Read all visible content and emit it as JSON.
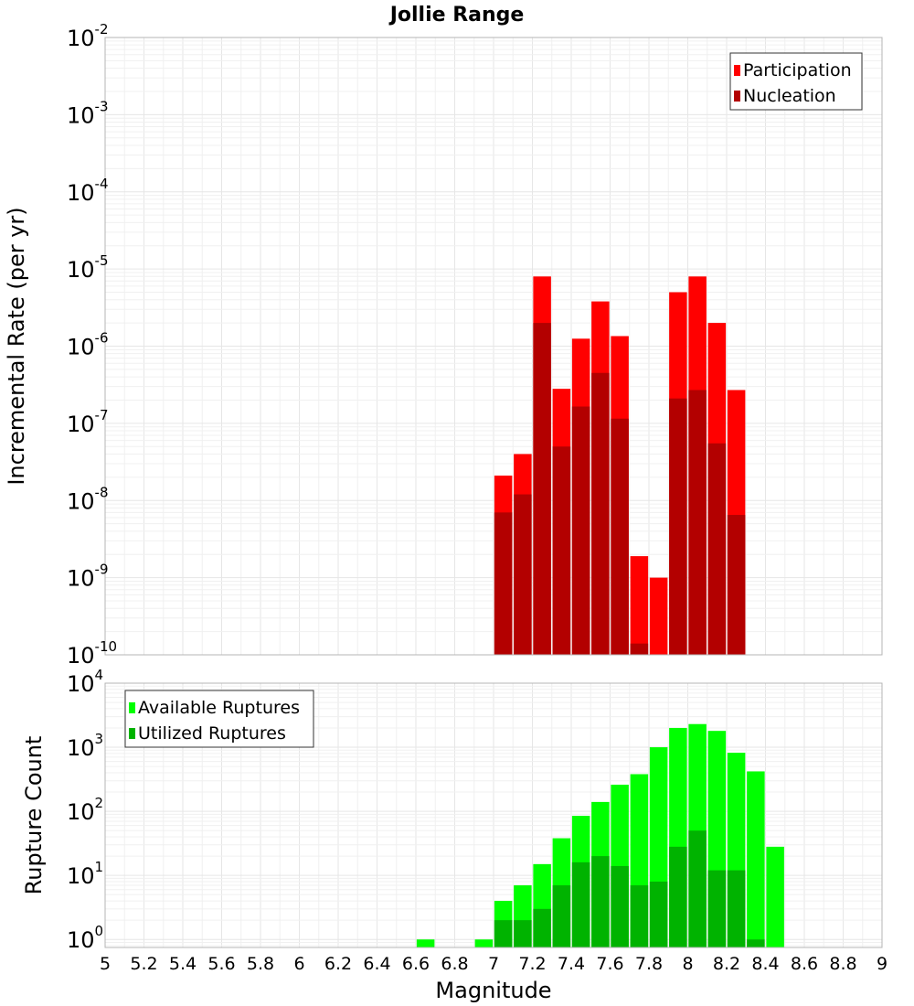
{
  "chart_data": [
    {
      "type": "bar",
      "title": "Jollie Range",
      "xlabel": "",
      "ylabel": "Incremental Rate (per yr)",
      "yscale": "log",
      "ylim": [
        1e-10,
        0.01
      ],
      "xlim": [
        5,
        9
      ],
      "grid": true,
      "legend_position": "top-right",
      "yticks": [
        {
          "base": "10",
          "exp": "-10",
          "value": 1e-10
        },
        {
          "base": "10",
          "exp": "-9",
          "value": 1e-09
        },
        {
          "base": "10",
          "exp": "-8",
          "value": 1e-08
        },
        {
          "base": "10",
          "exp": "-7",
          "value": 1e-07
        },
        {
          "base": "10",
          "exp": "-6",
          "value": 1e-06
        },
        {
          "base": "10",
          "exp": "-5",
          "value": 1e-05
        },
        {
          "base": "10",
          "exp": "-4",
          "value": 0.0001
        },
        {
          "base": "10",
          "exp": "-3",
          "value": 0.001
        },
        {
          "base": "10",
          "exp": "-2",
          "value": 0.01
        }
      ],
      "x": [
        7.05,
        7.15,
        7.25,
        7.35,
        7.45,
        7.55,
        7.65,
        7.75,
        7.85,
        7.95,
        8.05,
        8.15,
        8.25
      ],
      "series": [
        {
          "name": "Participation",
          "color": "#ff0000",
          "values": [
            2.1e-08,
            4e-08,
            8e-06,
            2.8e-07,
            1.25e-06,
            3.8e-06,
            1.35e-06,
            1.9e-09,
            1e-09,
            5e-06,
            8e-06,
            2e-06,
            2.7e-07
          ]
        },
        {
          "name": "Nucleation",
          "color": "#b30000",
          "values": [
            7e-09,
            1.2e-08,
            2e-06,
            5e-08,
            1.65e-07,
            4.5e-07,
            1.15e-07,
            1.4e-10,
            null,
            2.1e-07,
            2.7e-07,
            5.5e-08,
            6.5e-09
          ]
        }
      ]
    },
    {
      "type": "bar",
      "xlabel": "Magnitude",
      "ylabel": "Rupture Count",
      "yscale": "log",
      "ylim": [
        0.75,
        10000
      ],
      "xlim": [
        5,
        9
      ],
      "grid": true,
      "legend_position": "top-left",
      "yticks": [
        {
          "base": "10",
          "exp": "0",
          "value": 1
        },
        {
          "base": "10",
          "exp": "1",
          "value": 10
        },
        {
          "base": "10",
          "exp": "2",
          "value": 100
        },
        {
          "base": "10",
          "exp": "3",
          "value": 1000
        },
        {
          "base": "10",
          "exp": "4",
          "value": 10000
        }
      ],
      "xticks": [
        "5",
        "5.2",
        "5.4",
        "5.6",
        "5.8",
        "6",
        "6.2",
        "6.4",
        "6.6",
        "6.8",
        "7",
        "7.2",
        "7.4",
        "7.6",
        "7.8",
        "8",
        "8.2",
        "8.4",
        "8.6",
        "8.8",
        "9"
      ],
      "x": [
        6.65,
        6.95,
        7.05,
        7.15,
        7.25,
        7.35,
        7.45,
        7.55,
        7.65,
        7.75,
        7.85,
        7.95,
        8.05,
        8.15,
        8.25,
        8.35,
        8.45
      ],
      "series": [
        {
          "name": "Available Ruptures",
          "color": "#00ff00",
          "values": [
            1,
            1,
            4,
            7,
            15,
            38,
            85,
            140,
            260,
            380,
            1000,
            2000,
            2300,
            1800,
            820,
            420,
            28
          ]
        },
        {
          "name": "Utilized Ruptures",
          "color": "#00b300",
          "values": [
            null,
            null,
            2,
            2,
            3,
            7,
            16,
            20,
            14,
            7,
            8,
            28,
            50,
            12,
            12,
            1,
            null
          ]
        }
      ]
    }
  ]
}
